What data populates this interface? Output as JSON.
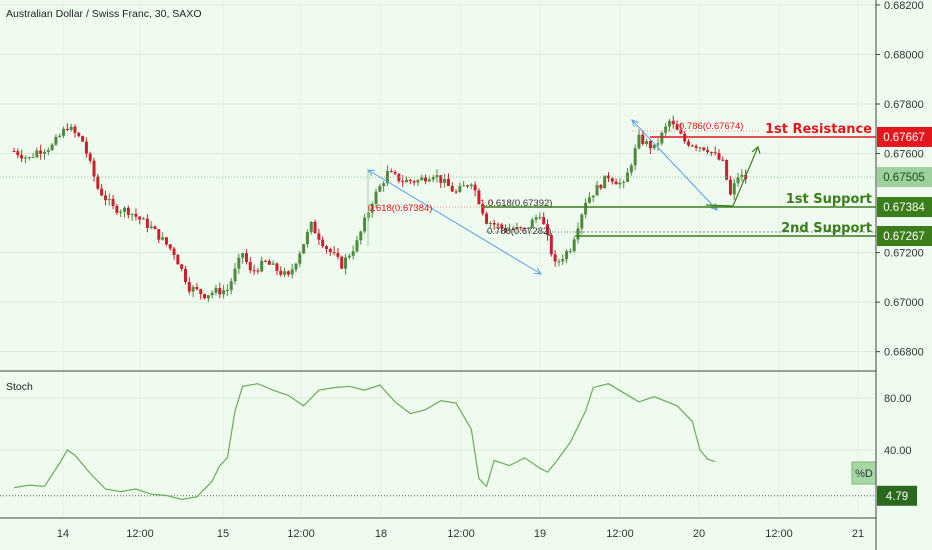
{
  "header": {
    "title": "Australian Dollar / Swiss Franc, 30, SAXO"
  },
  "colors": {
    "bg": "#f0fbf0",
    "up": "#4e8a3e",
    "down": "#c8202c",
    "resistance": "#e5161d",
    "support": "#3a7d1a",
    "fib": "#5aa0e8",
    "stoch": "#6aab5a"
  },
  "chart_data": [
    {
      "type": "line",
      "subtype": "candlestick",
      "title": "Australian Dollar / Swiss Franc, 30, SAXO",
      "ylim": [
        0.6673,
        0.6822
      ],
      "y_ticks": [
        "0.68200",
        "0.68000",
        "0.67800",
        "0.67600",
        "0.67200",
        "0.67000",
        "0.66800"
      ],
      "x_ticks": [
        "14",
        "12:00",
        "15",
        "12:00",
        "18",
        "12:00",
        "19",
        "12:00",
        "20",
        "12:00",
        "21"
      ],
      "x_range": [
        0,
        111
      ],
      "close_path": [
        [
          0,
          0.6761
        ],
        [
          2,
          0.6758
        ],
        [
          3,
          0.6761
        ],
        [
          5,
          0.6763
        ],
        [
          7,
          0.6771
        ],
        [
          9,
          0.6765
        ],
        [
          11,
          0.6746
        ],
        [
          13,
          0.6738
        ],
        [
          15,
          0.6737
        ],
        [
          18,
          0.673
        ],
        [
          21,
          0.672
        ],
        [
          23,
          0.6706
        ],
        [
          25,
          0.6703
        ],
        [
          26,
          0.6704
        ],
        [
          28,
          0.6705
        ],
        [
          30,
          0.672
        ],
        [
          31,
          0.6712
        ],
        [
          33,
          0.6716
        ],
        [
          36,
          0.671
        ],
        [
          39,
          0.6731
        ],
        [
          41,
          0.6722
        ],
        [
          43,
          0.6715
        ],
        [
          45,
          0.6724
        ],
        [
          47,
          0.6741
        ],
        [
          49,
          0.6752
        ],
        [
          51,
          0.6749
        ],
        [
          53,
          0.6749
        ],
        [
          55,
          0.6752
        ],
        [
          58,
          0.6744
        ],
        [
          60,
          0.6749
        ],
        [
          62,
          0.6733
        ],
        [
          64,
          0.673
        ],
        [
          67,
          0.6729
        ],
        [
          69,
          0.6736
        ],
        [
          71,
          0.6715
        ],
        [
          73,
          0.6722
        ],
        [
          75,
          0.6741
        ],
        [
          78,
          0.6751
        ],
        [
          80,
          0.6747
        ],
        [
          82,
          0.6766
        ],
        [
          84,
          0.6762
        ],
        [
          86,
          0.6773
        ],
        [
          88,
          0.6765
        ],
        [
          91,
          0.6762
        ],
        [
          93,
          0.6756
        ],
        [
          94,
          0.6743
        ],
        [
          95,
          0.6751
        ],
        [
          96,
          0.675
        ]
      ],
      "fib_labels": [
        "0.618(0.67384)",
        "0.618(0.67392)",
        "0.786(0.67282)",
        "0.786(0.67674)",
        "1.0"
      ],
      "levels": [
        {
          "name": "1st Resistance",
          "value": 0.67667,
          "tag": "0.67667"
        },
        {
          "name": "1st Support",
          "value": 0.67384,
          "tag": "0.67384"
        },
        {
          "name": "2nd Support",
          "value": 0.67267,
          "tag": "0.67267"
        }
      ],
      "last_price": {
        "value": 0.67505,
        "tag": "0.67505"
      }
    },
    {
      "type": "line",
      "title": "Stoch",
      "ylim": [
        0,
        100
      ],
      "y_ticks": [
        "80.00",
        "40.00"
      ],
      "series": [
        {
          "name": "%D"
        }
      ],
      "points": [
        [
          0,
          11
        ],
        [
          2,
          13
        ],
        [
          4,
          12
        ],
        [
          6,
          30
        ],
        [
          7,
          40
        ],
        [
          8,
          36
        ],
        [
          10,
          22
        ],
        [
          12,
          10
        ],
        [
          14,
          8
        ],
        [
          16,
          10
        ],
        [
          18,
          6
        ],
        [
          20,
          5
        ],
        [
          22,
          2
        ],
        [
          24,
          4
        ],
        [
          26,
          16
        ],
        [
          27,
          28
        ],
        [
          28,
          34
        ],
        [
          29,
          70
        ],
        [
          30,
          89
        ],
        [
          32,
          91
        ],
        [
          34,
          86
        ],
        [
          36,
          82
        ],
        [
          38,
          74
        ],
        [
          40,
          86
        ],
        [
          42,
          88
        ],
        [
          44,
          89
        ],
        [
          46,
          86
        ],
        [
          48,
          90
        ],
        [
          50,
          77
        ],
        [
          52,
          68
        ],
        [
          54,
          71
        ],
        [
          56,
          78
        ],
        [
          58,
          76
        ],
        [
          60,
          56
        ],
        [
          61,
          18
        ],
        [
          62,
          12
        ],
        [
          63,
          32
        ],
        [
          65,
          28
        ],
        [
          67,
          34
        ],
        [
          69,
          26
        ],
        [
          70,
          23
        ],
        [
          71,
          30
        ],
        [
          73,
          46
        ],
        [
          75,
          70
        ],
        [
          76,
          88
        ],
        [
          78,
          91
        ],
        [
          80,
          84
        ],
        [
          82,
          77
        ],
        [
          84,
          81
        ],
        [
          87,
          74
        ],
        [
          89,
          62
        ],
        [
          90,
          40
        ],
        [
          91,
          33
        ],
        [
          92,
          31
        ]
      ],
      "last_value": {
        "label": "%D",
        "value": 4.79,
        "tag": "4.79"
      }
    }
  ]
}
